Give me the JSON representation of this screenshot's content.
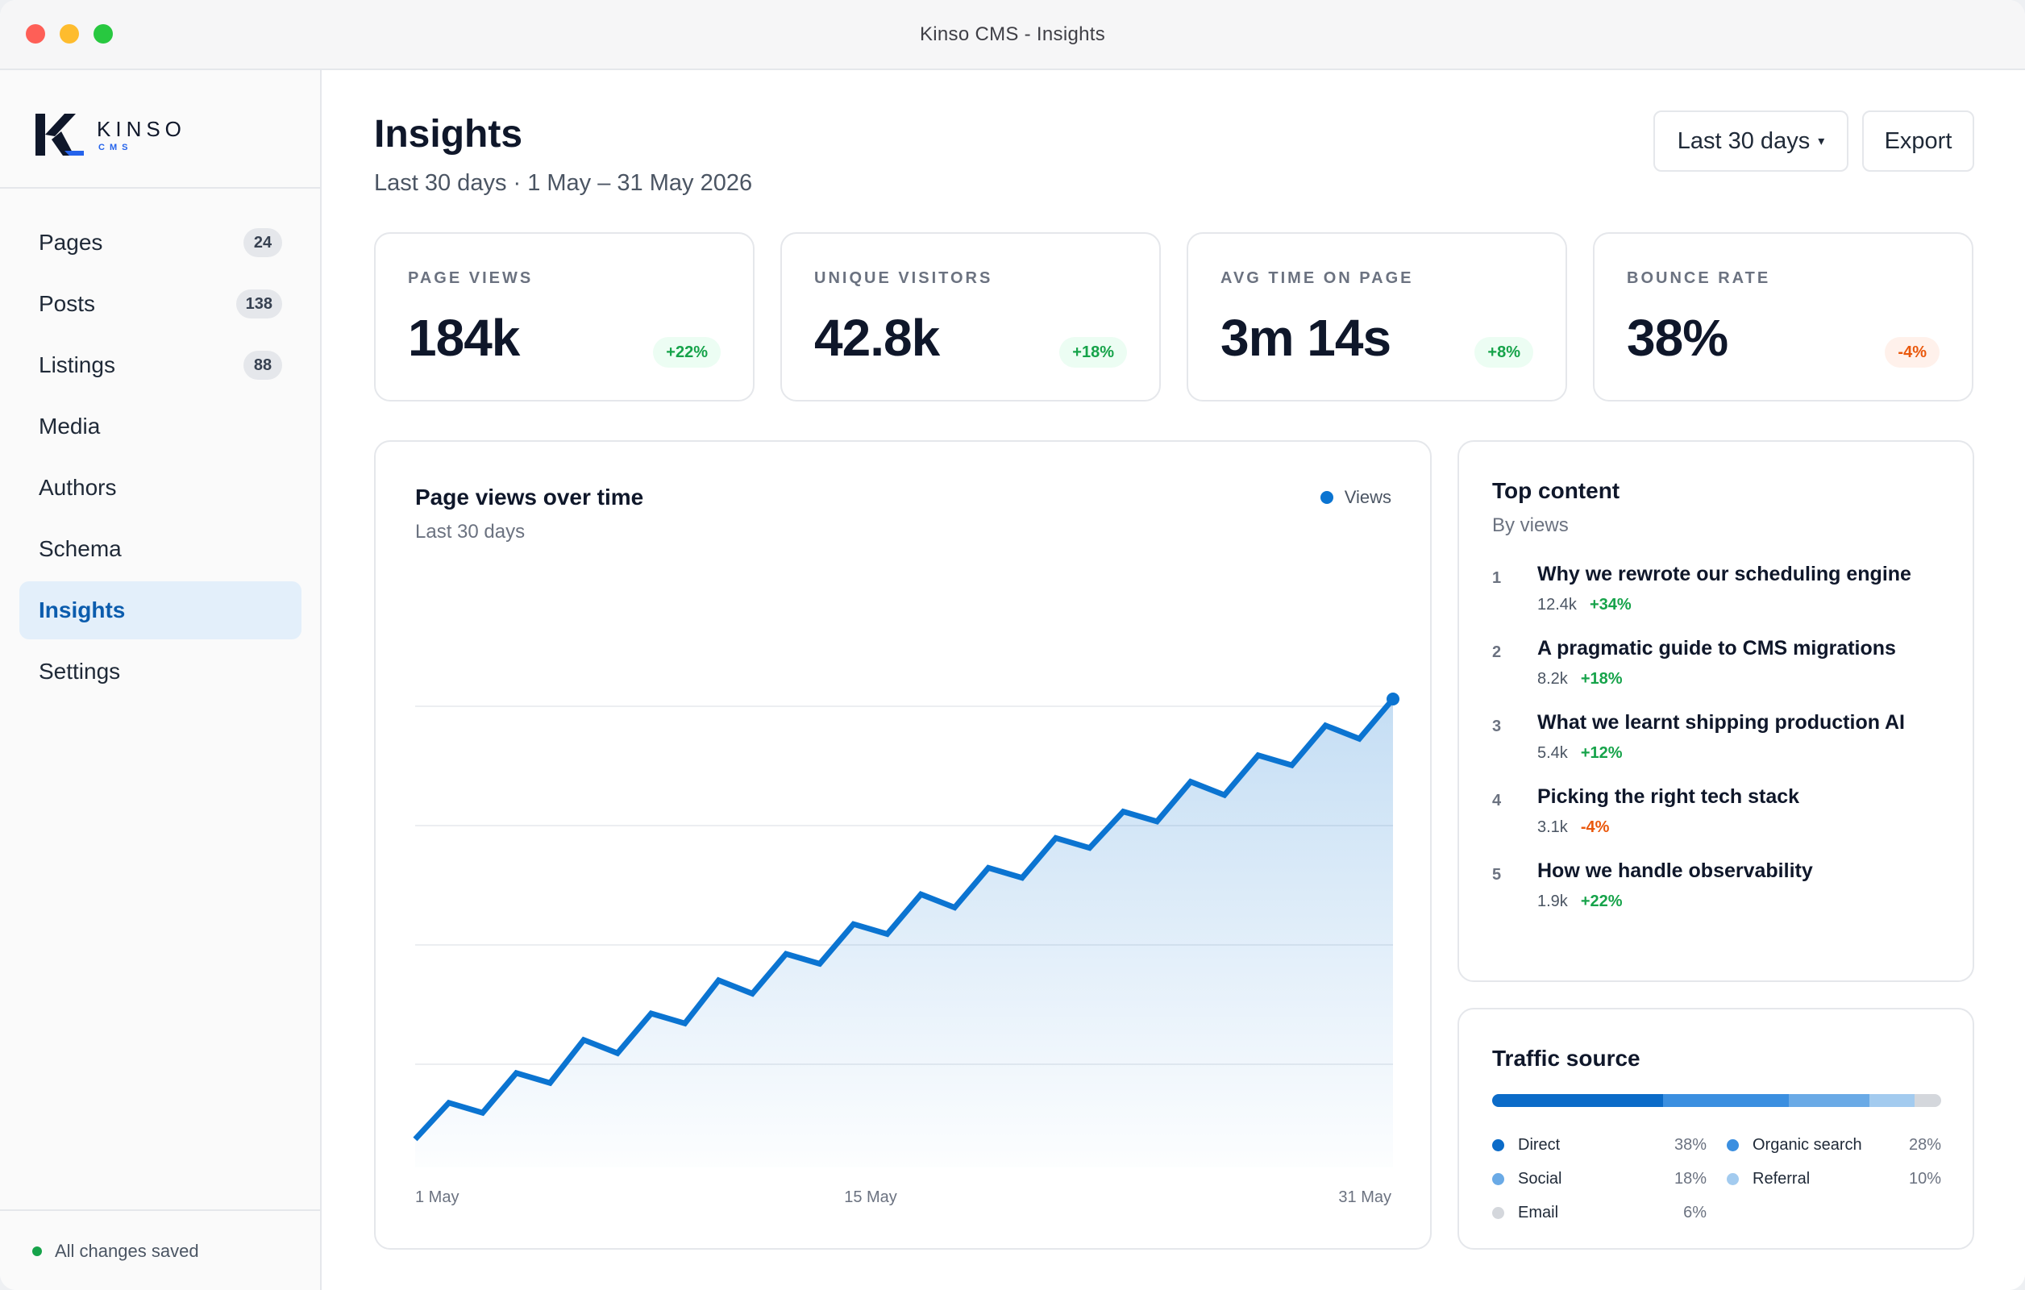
{
  "window": {
    "title": "Kinso CMS - Insights"
  },
  "brand": {
    "name": "KINSO",
    "sub": "CMS"
  },
  "sidebar": {
    "items": [
      {
        "label": "Pages",
        "badge": "24",
        "active": false
      },
      {
        "label": "Posts",
        "badge": "138",
        "active": false
      },
      {
        "label": "Listings",
        "badge": "88",
        "active": false
      },
      {
        "label": "Media",
        "badge": "",
        "active": false
      },
      {
        "label": "Authors",
        "badge": "",
        "active": false
      },
      {
        "label": "Schema",
        "badge": "",
        "active": false
      },
      {
        "label": "Insights",
        "badge": "",
        "active": true
      },
      {
        "label": "Settings",
        "badge": "",
        "active": false
      }
    ],
    "status": "All changes saved"
  },
  "header": {
    "title": "Insights",
    "subtitle": "Last 30 days · 1 May – 31 May 2026",
    "range_label": "Last 30 days",
    "export_label": "Export"
  },
  "kpis": [
    {
      "label": "PAGE VIEWS",
      "value": "184k",
      "delta": "+22%",
      "trend": "up"
    },
    {
      "label": "UNIQUE VISITORS",
      "value": "42.8k",
      "delta": "+18%",
      "trend": "up"
    },
    {
      "label": "AVG TIME ON PAGE",
      "value": "3m 14s",
      "delta": "+8%",
      "trend": "up"
    },
    {
      "label": "BOUNCE RATE",
      "value": "38%",
      "delta": "-4%",
      "trend": "down"
    }
  ],
  "chart_data": {
    "type": "area",
    "title": "Page views over time",
    "subtitle": "Last 30 days",
    "series": [
      {
        "name": "Views",
        "color": "#0b74d1",
        "values": [
          0,
          11,
          8,
          20,
          17,
          30,
          26,
          38,
          35,
          48,
          44,
          56,
          53,
          65,
          62,
          74,
          70,
          82,
          79,
          91,
          88,
          99,
          96,
          108,
          104,
          116,
          113,
          125,
          121,
          133
        ]
      }
    ],
    "x_labels": [
      "1 May",
      "15 May",
      "31 May"
    ],
    "gridlines": 4,
    "grid": true,
    "legend_position": "top-right"
  },
  "top_content": {
    "title": "Top content",
    "subtitle": "By views",
    "items": [
      {
        "rank": "1",
        "title": "Why we rewrote our scheduling engine",
        "views": "12.4k",
        "delta": "+34%",
        "trend": "up"
      },
      {
        "rank": "2",
        "title": "A pragmatic guide to CMS migrations",
        "views": "8.2k",
        "delta": "+18%",
        "trend": "up"
      },
      {
        "rank": "3",
        "title": "What we learnt shipping production AI",
        "views": "5.4k",
        "delta": "+12%",
        "trend": "up"
      },
      {
        "rank": "4",
        "title": "Picking the right tech stack",
        "views": "3.1k",
        "delta": "-4%",
        "trend": "down"
      },
      {
        "rank": "5",
        "title": "How we handle observability",
        "views": "1.9k",
        "delta": "+22%",
        "trend": "up"
      }
    ]
  },
  "traffic": {
    "title": "Traffic source",
    "sources": [
      {
        "name": "Direct",
        "value": "38%",
        "share": 38,
        "color": "#0b6bc8"
      },
      {
        "name": "Organic search",
        "value": "28%",
        "share": 28,
        "color": "#3b8fe0"
      },
      {
        "name": "Social",
        "value": "18%",
        "share": 18,
        "color": "#6aaae6"
      },
      {
        "name": "Referral",
        "value": "10%",
        "share": 10,
        "color": "#a3cbef"
      },
      {
        "name": "Email",
        "value": "6%",
        "share": 6,
        "color": "#d4d7dc"
      }
    ]
  }
}
